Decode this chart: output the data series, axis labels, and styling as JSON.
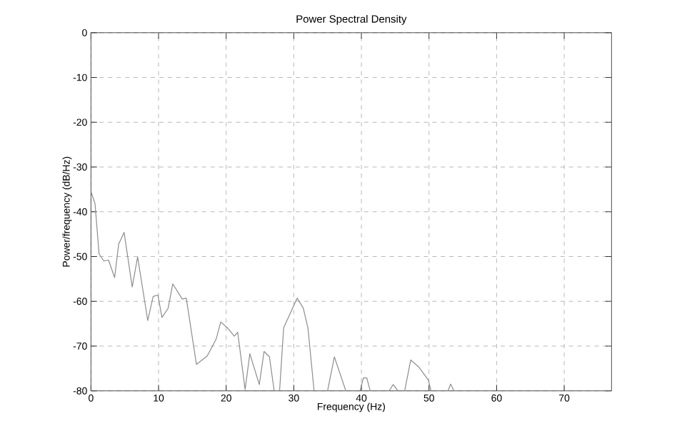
{
  "chart_data": {
    "type": "line",
    "title": "Power Spectral Density",
    "xlabel": "Frequency (Hz)",
    "ylabel": "Power/frequency (dB/Hz)",
    "xlim": [
      0,
      77
    ],
    "ylim": [
      -80,
      0
    ],
    "xticks": [
      0,
      10,
      20,
      30,
      40,
      50,
      60,
      70
    ],
    "yticks": [
      -80,
      -70,
      -60,
      -50,
      -40,
      -30,
      -20,
      -10,
      0
    ],
    "grid": true,
    "marker": "none",
    "line_style": "solid",
    "series": [
      {
        "color": "#8c8c8c",
        "x": [
          0,
          0.6,
          1.2,
          1.9,
          2.6,
          3.5,
          4.1,
          4.9,
          6.1,
          6.9,
          8.4,
          9.2,
          9.9,
          10.5,
          11.4,
          12.1,
          13.5,
          14.1,
          15.6,
          17.2,
          18.5,
          19.2,
          20.3,
          21.2,
          21.7,
          22.8,
          23.5,
          24.9,
          25.6,
          26.4,
          27.1,
          27.6,
          27.9,
          28.5,
          30.5,
          31.4,
          32.1,
          33,
          34,
          35,
          36,
          37.7,
          38.8,
          39.8,
          40.3,
          40.8,
          41.3,
          42.7,
          44.1,
          44.7,
          45.4,
          45.9,
          46.4,
          47.3,
          48.5,
          49.9,
          50.3,
          51.5,
          52.8,
          53.2,
          53.7
        ],
        "values": [
          -35.5,
          -38.2,
          -49.4,
          -51,
          -50.8,
          -54.7,
          -47.2,
          -44.6,
          -56.8,
          -50.1,
          -64.3,
          -58.9,
          -58.6,
          -63.6,
          -61.6,
          -56.1,
          -59.5,
          -59.3,
          -74.1,
          -72.2,
          -68.5,
          -64.6,
          -66.1,
          -67.8,
          -66.9,
          -79.7,
          -71.7,
          -78.6,
          -71.2,
          -72.4,
          -80,
          null,
          -80,
          -65.9,
          -59.3,
          -61.5,
          -66,
          -80,
          null,
          -80,
          -72.4,
          -80,
          null,
          -80,
          -77.1,
          -77.1,
          -80,
          null,
          -80,
          -78.6,
          -80,
          null,
          -80,
          -73.1,
          -74.7,
          -77.6,
          -80,
          null,
          -80,
          -78.5,
          -80
        ]
      }
    ]
  }
}
